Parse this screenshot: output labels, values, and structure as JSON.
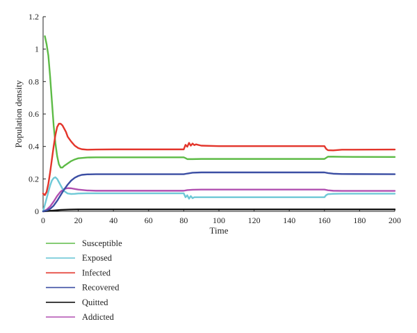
{
  "chart_data": {
    "type": "line",
    "xlabel": "Time",
    "ylabel": "Population density",
    "xlim": [
      0,
      200
    ],
    "ylim": [
      0,
      1.2
    ],
    "xticks": [
      0,
      20,
      40,
      60,
      80,
      100,
      120,
      140,
      160,
      180,
      200
    ],
    "yticks": [
      0,
      0.2,
      0.4,
      0.6,
      0.8,
      1,
      1.2
    ],
    "xtick_labels": [
      "0",
      "20",
      "40",
      "60",
      "80",
      "100",
      "120",
      "140",
      "160",
      "180",
      "200"
    ],
    "ytick_labels": [
      "0",
      "0.2",
      "0.4",
      "0.6",
      "0.8",
      "1",
      "1.2"
    ],
    "grid": false,
    "legend_position": "bottom-left",
    "series": [
      {
        "name": "Susceptible",
        "color": "#5dbb46",
        "x": [
          1,
          2,
          3,
          4,
          5,
          6,
          7,
          8,
          9,
          10,
          11,
          12,
          14,
          16,
          18,
          20,
          25,
          30,
          40,
          60,
          80,
          81,
          82,
          85,
          90,
          100,
          140,
          160,
          161,
          162,
          165,
          170,
          200
        ],
        "y": [
          1.08,
          1.03,
          0.96,
          0.83,
          0.68,
          0.53,
          0.42,
          0.34,
          0.29,
          0.27,
          0.27,
          0.28,
          0.295,
          0.31,
          0.32,
          0.327,
          0.332,
          0.333,
          0.333,
          0.333,
          0.333,
          0.328,
          0.322,
          0.322,
          0.323,
          0.323,
          0.323,
          0.323,
          0.33,
          0.337,
          0.337,
          0.336,
          0.335
        ]
      },
      {
        "name": "Exposed",
        "color": "#6ec8d6",
        "x": [
          0,
          1,
          2,
          3,
          4,
          5,
          6,
          7,
          8,
          9,
          10,
          11,
          12,
          14,
          16,
          18,
          20,
          25,
          30,
          40,
          60,
          80,
          81,
          82,
          83,
          84,
          85,
          86,
          90,
          100,
          140,
          160,
          161,
          162,
          165,
          170,
          200
        ],
        "y": [
          0,
          0.04,
          0.08,
          0.12,
          0.16,
          0.19,
          0.205,
          0.21,
          0.2,
          0.18,
          0.16,
          0.14,
          0.125,
          0.11,
          0.107,
          0.108,
          0.11,
          0.111,
          0.111,
          0.111,
          0.111,
          0.111,
          0.087,
          0.099,
          0.078,
          0.094,
          0.081,
          0.087,
          0.087,
          0.087,
          0.087,
          0.087,
          0.1,
          0.106,
          0.108,
          0.109,
          0.109
        ]
      },
      {
        "name": "Infected",
        "color": "#e3352b",
        "x": [
          0,
          1,
          2,
          3,
          4,
          5,
          6,
          7,
          8,
          9,
          10,
          11,
          12,
          13,
          14,
          16,
          18,
          20,
          22,
          25,
          30,
          40,
          60,
          80,
          81,
          82,
          83,
          84,
          85,
          86,
          87,
          88,
          90,
          100,
          140,
          160,
          161,
          162,
          165,
          170,
          200
        ],
        "y": [
          0.11,
          0.1,
          0.12,
          0.17,
          0.24,
          0.32,
          0.4,
          0.47,
          0.52,
          0.54,
          0.54,
          0.53,
          0.51,
          0.49,
          0.46,
          0.43,
          0.405,
          0.39,
          0.383,
          0.38,
          0.381,
          0.382,
          0.382,
          0.382,
          0.41,
          0.398,
          0.422,
          0.405,
          0.418,
          0.408,
          0.413,
          0.41,
          0.405,
          0.402,
          0.402,
          0.402,
          0.385,
          0.377,
          0.376,
          0.38,
          0.381
        ]
      },
      {
        "name": "Recovered",
        "color": "#3b4ea3",
        "x": [
          0,
          2,
          4,
          6,
          8,
          10,
          12,
          14,
          16,
          18,
          20,
          22,
          25,
          30,
          40,
          60,
          80,
          82,
          85,
          90,
          100,
          140,
          160,
          162,
          165,
          170,
          200
        ],
        "y": [
          0,
          0.005,
          0.015,
          0.035,
          0.065,
          0.1,
          0.135,
          0.165,
          0.19,
          0.207,
          0.218,
          0.225,
          0.228,
          0.229,
          0.229,
          0.229,
          0.229,
          0.233,
          0.238,
          0.24,
          0.24,
          0.24,
          0.24,
          0.236,
          0.232,
          0.23,
          0.229
        ]
      },
      {
        "name": "Quitted",
        "color": "#111111",
        "x": [
          0,
          5,
          10,
          15,
          20,
          30,
          60,
          80,
          100,
          160,
          200
        ],
        "y": [
          0,
          0.004,
          0.009,
          0.011,
          0.012,
          0.012,
          0.012,
          0.012,
          0.012,
          0.012,
          0.012
        ]
      },
      {
        "name": "Addicted",
        "color": "#b14fb0",
        "x": [
          0,
          2,
          4,
          6,
          8,
          10,
          12,
          14,
          16,
          18,
          20,
          25,
          30,
          40,
          60,
          80,
          82,
          85,
          90,
          100,
          140,
          160,
          162,
          165,
          170,
          200
        ],
        "y": [
          0,
          0.01,
          0.03,
          0.06,
          0.095,
          0.122,
          0.138,
          0.143,
          0.142,
          0.138,
          0.134,
          0.129,
          0.127,
          0.127,
          0.127,
          0.127,
          0.131,
          0.133,
          0.134,
          0.134,
          0.134,
          0.134,
          0.13,
          0.127,
          0.126,
          0.126
        ]
      }
    ]
  }
}
